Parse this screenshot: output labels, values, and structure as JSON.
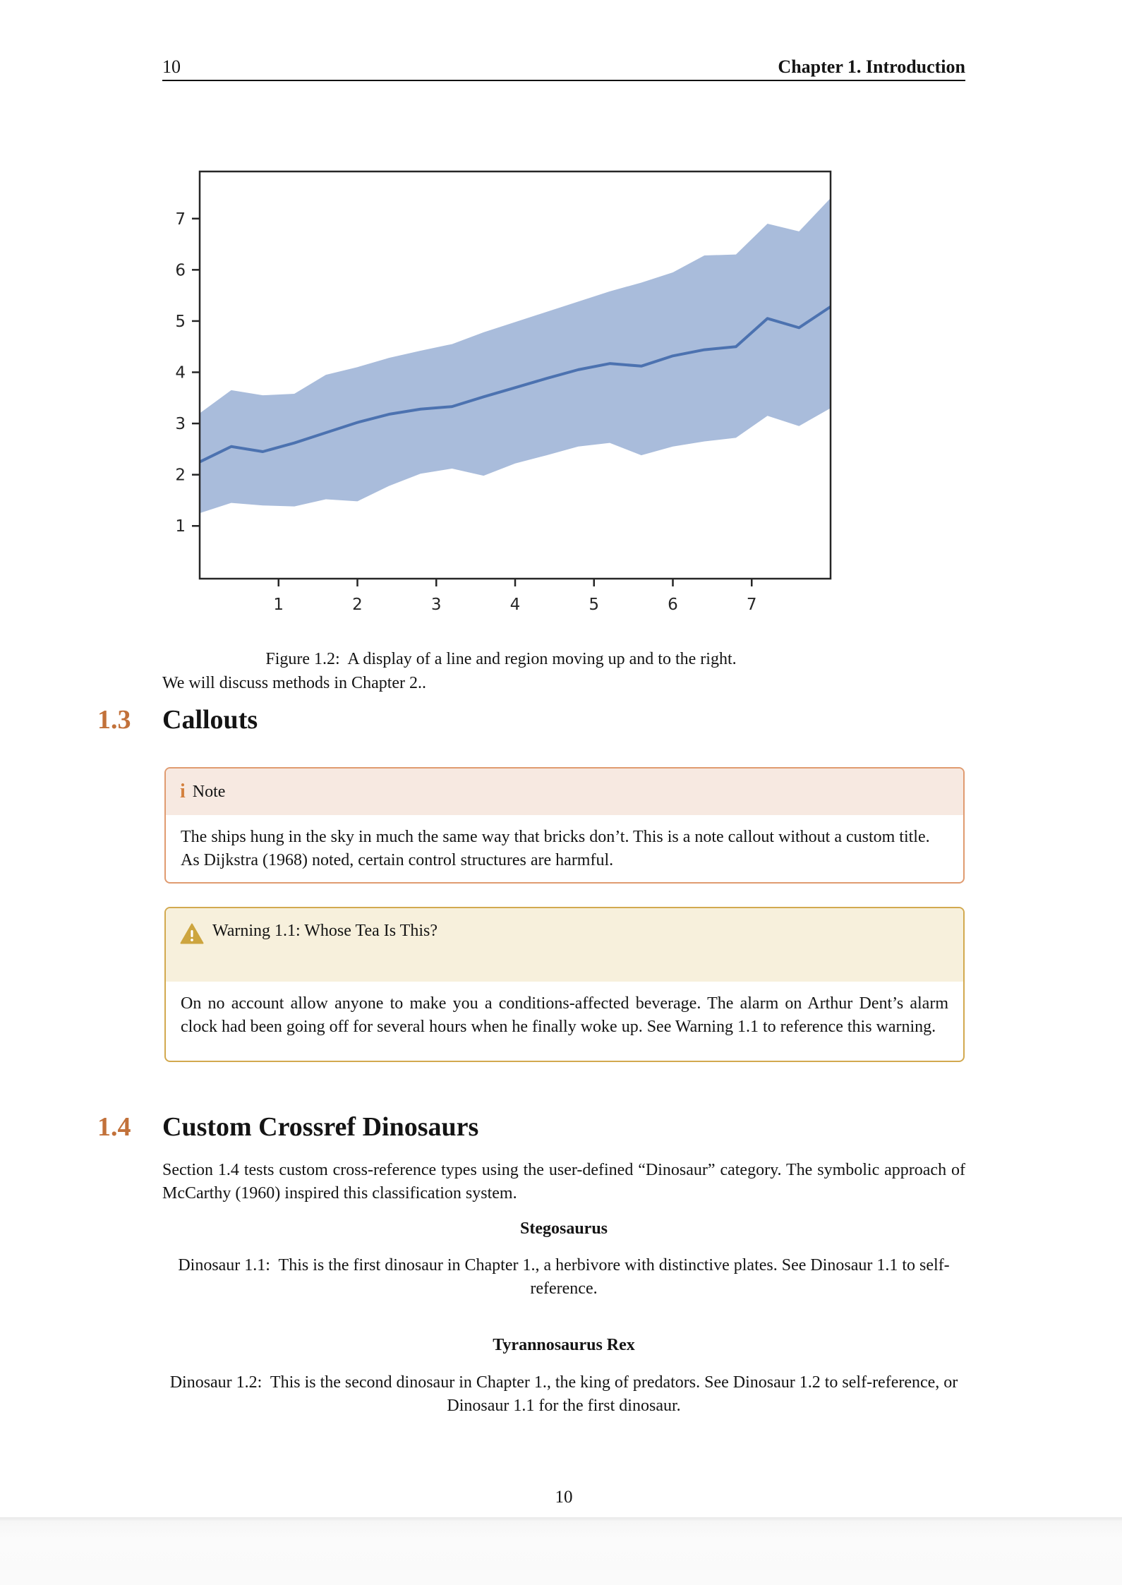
{
  "header": {
    "page_number": "10",
    "chapter_title": "Chapter 1. Introduction"
  },
  "figure": {
    "caption": "Figure 1.2:  A display of a line and region moving up and to the right."
  },
  "paragraph_after_figure": "We will discuss methods in Chapter 2..",
  "section_callouts": {
    "number": "1.3",
    "title": "Callouts"
  },
  "note_callout": {
    "icon_glyph": "i",
    "title": "Note",
    "body": "The ships hung in the sky in much the same way that bricks don’t. This is a note callout without a custom title. As Dijkstra (1968) noted, certain control structures are harmful."
  },
  "warning_callout": {
    "title": "Warning 1.1: Whose Tea Is This?",
    "body": "On no account allow anyone to make you a conditions-affected beverage. The alarm on Arthur Dent’s alarm clock had been going off for several hours when he finally woke up. See Warning 1.1 to reference this warning."
  },
  "section_dinosaurs": {
    "number": "1.4",
    "title": "Custom Crossref Dinosaurs"
  },
  "dinosaur_intro": "Section 1.4 tests custom cross-reference types using the user-defined “Dinosaur” category. The symbolic approach of McCarthy (1960) inspired this classification system.",
  "dinosaur_1": {
    "name": "Stegosaurus",
    "text": "Dinosaur 1.1:  This is the first dinosaur in Chapter 1., a herbivore with distinctive plates. See Dinosaur 1.1 to self-reference."
  },
  "dinosaur_2": {
    "name": "Tyrannosaurus Rex",
    "text": "Dinosaur 1.2:  This is the second dinosaur in Chapter 1., the king of predators. See Dinosaur 1.2 to self-reference, or Dinosaur 1.1 for the first dinosaur."
  },
  "footer": {
    "page_number": "10"
  },
  "colors": {
    "accent_section_number": "#c2713a",
    "note_border": "#e09b70",
    "note_header_bg": "#f7e9e1",
    "note_icon": "#d4813f",
    "warning_border": "#d2a94f",
    "warning_header_bg": "#f7f0dc",
    "warning_icon": "#cda53f"
  },
  "chart_data": {
    "type": "line",
    "title": "",
    "xlabel": "",
    "ylabel": "",
    "grid": false,
    "legend": null,
    "xlim": [
      0,
      8
    ],
    "ylim": [
      -0.03,
      7.92
    ],
    "xticks": [
      1,
      2,
      3,
      4,
      5,
      6,
      7
    ],
    "yticks": [
      1,
      2,
      3,
      4,
      5,
      6,
      7
    ],
    "x": [
      0.0,
      0.4,
      0.8,
      1.2,
      1.6,
      2.0,
      2.4,
      2.8,
      3.2,
      3.6,
      4.0,
      4.4,
      4.8,
      5.2,
      5.6,
      6.0,
      6.4,
      6.8,
      7.2,
      7.6,
      8.0
    ],
    "series": [
      {
        "name": "line",
        "values": [
          2.25,
          2.55,
          2.45,
          2.62,
          2.82,
          3.02,
          3.18,
          3.28,
          3.33,
          3.52,
          3.7,
          3.88,
          4.05,
          4.17,
          4.12,
          4.32,
          4.44,
          4.5,
          5.05,
          4.87,
          5.28
        ]
      }
    ],
    "band": {
      "upper": [
        3.2,
        3.65,
        3.55,
        3.58,
        3.95,
        4.1,
        4.28,
        4.42,
        4.55,
        4.78,
        4.98,
        5.18,
        5.38,
        5.58,
        5.75,
        5.95,
        6.28,
        6.3,
        6.9,
        6.75,
        7.4
      ],
      "lower": [
        1.25,
        1.45,
        1.4,
        1.38,
        1.52,
        1.48,
        1.78,
        2.02,
        2.12,
        1.98,
        2.22,
        2.38,
        2.55,
        2.62,
        2.38,
        2.55,
        2.65,
        2.72,
        3.15,
        2.95,
        3.3
      ]
    },
    "line_color": "#4c72b0",
    "band_color": "#a9bcdb",
    "frame_color": "#262626"
  }
}
